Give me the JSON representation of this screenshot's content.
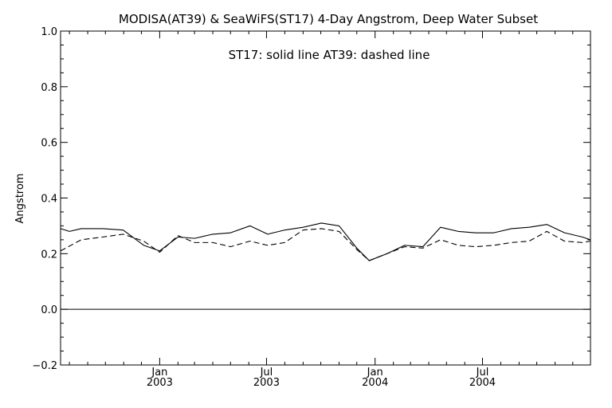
{
  "chart_data": {
    "type": "line",
    "title": "MODISA(AT39) & SeaWiFS(ST17) 4-Day Angstrom, Deep Water Subset",
    "annotation": "ST17: solid line   AT39: dashed line",
    "xlabel": "",
    "ylabel": "Angstrom",
    "ylim": [
      -0.2,
      1.0
    ],
    "xlim": [
      "2002-07-17",
      "2004-12-31"
    ],
    "yticks": [
      "−0.2",
      "0.0",
      "0.2",
      "0.4",
      "0.6",
      "0.8",
      "1.0"
    ],
    "xticks": [
      {
        "date": "2003-01-01",
        "line1": "Jan",
        "line2": "2003"
      },
      {
        "date": "2003-07-01",
        "line1": "Jul",
        "line2": "2003"
      },
      {
        "date": "2004-01-01",
        "line1": "Jan",
        "line2": "2004"
      },
      {
        "date": "2004-07-01",
        "line1": "Jul",
        "line2": "2004"
      }
    ],
    "reference_line_y": 0.0,
    "legend": "none",
    "grid": false,
    "series": [
      {
        "name": "ST17",
        "style": "solid",
        "color": "#000000",
        "points": [
          [
            "2002-07-17",
            0.29
          ],
          [
            "2002-08-01",
            0.28
          ],
          [
            "2002-08-21",
            0.29
          ],
          [
            "2002-09-27",
            0.29
          ],
          [
            "2002-10-31",
            0.285
          ],
          [
            "2002-12-05",
            0.23
          ],
          [
            "2003-01-01",
            0.21
          ],
          [
            "2003-02-01",
            0.26
          ],
          [
            "2003-03-01",
            0.255
          ],
          [
            "2003-04-01",
            0.27
          ],
          [
            "2003-05-01",
            0.275
          ],
          [
            "2003-06-03",
            0.3
          ],
          [
            "2003-07-03",
            0.27
          ],
          [
            "2003-08-01",
            0.285
          ],
          [
            "2003-09-01",
            0.295
          ],
          [
            "2003-10-02",
            0.31
          ],
          [
            "2003-11-01",
            0.3
          ],
          [
            "2003-12-01",
            0.22
          ],
          [
            "2003-12-22",
            0.175
          ],
          [
            "2004-01-21",
            0.2
          ],
          [
            "2004-02-20",
            0.23
          ],
          [
            "2004-03-22",
            0.225
          ],
          [
            "2004-04-21",
            0.295
          ],
          [
            "2004-05-21",
            0.28
          ],
          [
            "2004-06-20",
            0.275
          ],
          [
            "2004-07-20",
            0.275
          ],
          [
            "2004-08-19",
            0.29
          ],
          [
            "2004-09-18",
            0.295
          ],
          [
            "2004-10-18",
            0.305
          ],
          [
            "2004-11-17",
            0.275
          ],
          [
            "2004-12-17",
            0.26
          ],
          [
            "2004-12-31",
            0.25
          ]
        ]
      },
      {
        "name": "AT39",
        "style": "dashed",
        "color": "#000000",
        "points": [
          [
            "2002-07-17",
            0.21
          ],
          [
            "2002-08-21",
            0.25
          ],
          [
            "2002-09-27",
            0.26
          ],
          [
            "2002-10-31",
            0.27
          ],
          [
            "2002-12-05",
            0.245
          ],
          [
            "2003-01-01",
            0.205
          ],
          [
            "2003-02-01",
            0.265
          ],
          [
            "2003-03-01",
            0.24
          ],
          [
            "2003-04-01",
            0.24
          ],
          [
            "2003-05-01",
            0.225
          ],
          [
            "2003-06-03",
            0.245
          ],
          [
            "2003-07-03",
            0.23
          ],
          [
            "2003-08-01",
            0.24
          ],
          [
            "2003-09-01",
            0.285
          ],
          [
            "2003-10-02",
            0.29
          ],
          [
            "2003-11-01",
            0.28
          ],
          [
            "2003-12-01",
            0.215
          ],
          [
            "2003-12-22",
            0.175
          ],
          [
            "2004-01-21",
            0.2
          ],
          [
            "2004-02-20",
            0.225
          ],
          [
            "2004-03-22",
            0.22
          ],
          [
            "2004-04-21",
            0.25
          ],
          [
            "2004-05-21",
            0.23
          ],
          [
            "2004-06-20",
            0.225
          ],
          [
            "2004-07-20",
            0.23
          ],
          [
            "2004-08-19",
            0.24
          ],
          [
            "2004-09-18",
            0.245
          ],
          [
            "2004-10-18",
            0.28
          ],
          [
            "2004-11-17",
            0.245
          ],
          [
            "2004-12-17",
            0.24
          ],
          [
            "2004-12-31",
            0.245
          ]
        ]
      }
    ]
  }
}
